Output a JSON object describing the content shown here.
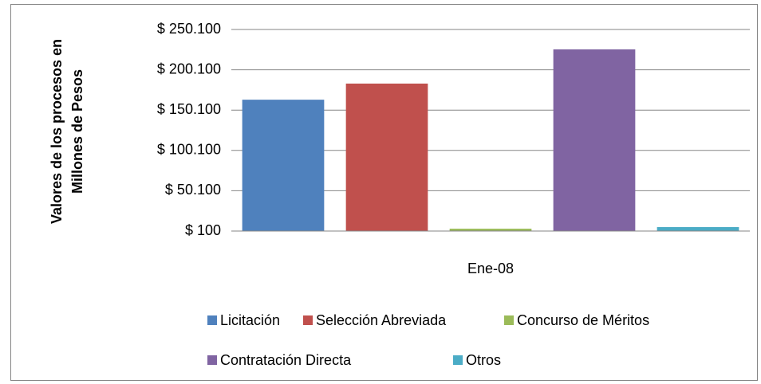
{
  "chart_data": {
    "type": "bar",
    "y_label": [
      "Valores de los procesos en",
      "Millones de Pesos"
    ],
    "categories": [
      "Ene-08"
    ],
    "series": [
      {
        "name": "Licitación",
        "color": "#4f81bd",
        "values": [
          163000
        ]
      },
      {
        "name": "Selección Abreviada",
        "color": "#c0504d",
        "values": [
          183000
        ]
      },
      {
        "name": "Concurso de Méritos",
        "color": "#9bbb59",
        "values": [
          3000
        ]
      },
      {
        "name": "Contratación Directa",
        "color": "#8064a2",
        "values": [
          225400
        ]
      },
      {
        "name": "Otros",
        "color": "#4bacc6",
        "values": [
          5000
        ]
      }
    ],
    "ylim": [
      100,
      250100
    ],
    "yticks": [
      {
        "value": 100,
        "label": "$ 100"
      },
      {
        "value": 50100,
        "label": "$ 50.100"
      },
      {
        "value": 100100,
        "label": "$ 100.100"
      },
      {
        "value": 150100,
        "label": "$ 150.100"
      },
      {
        "value": 200100,
        "label": "$ 200.100"
      },
      {
        "value": 250100,
        "label": "$ 250.100"
      }
    ],
    "grid": true,
    "legend": "bottom"
  }
}
